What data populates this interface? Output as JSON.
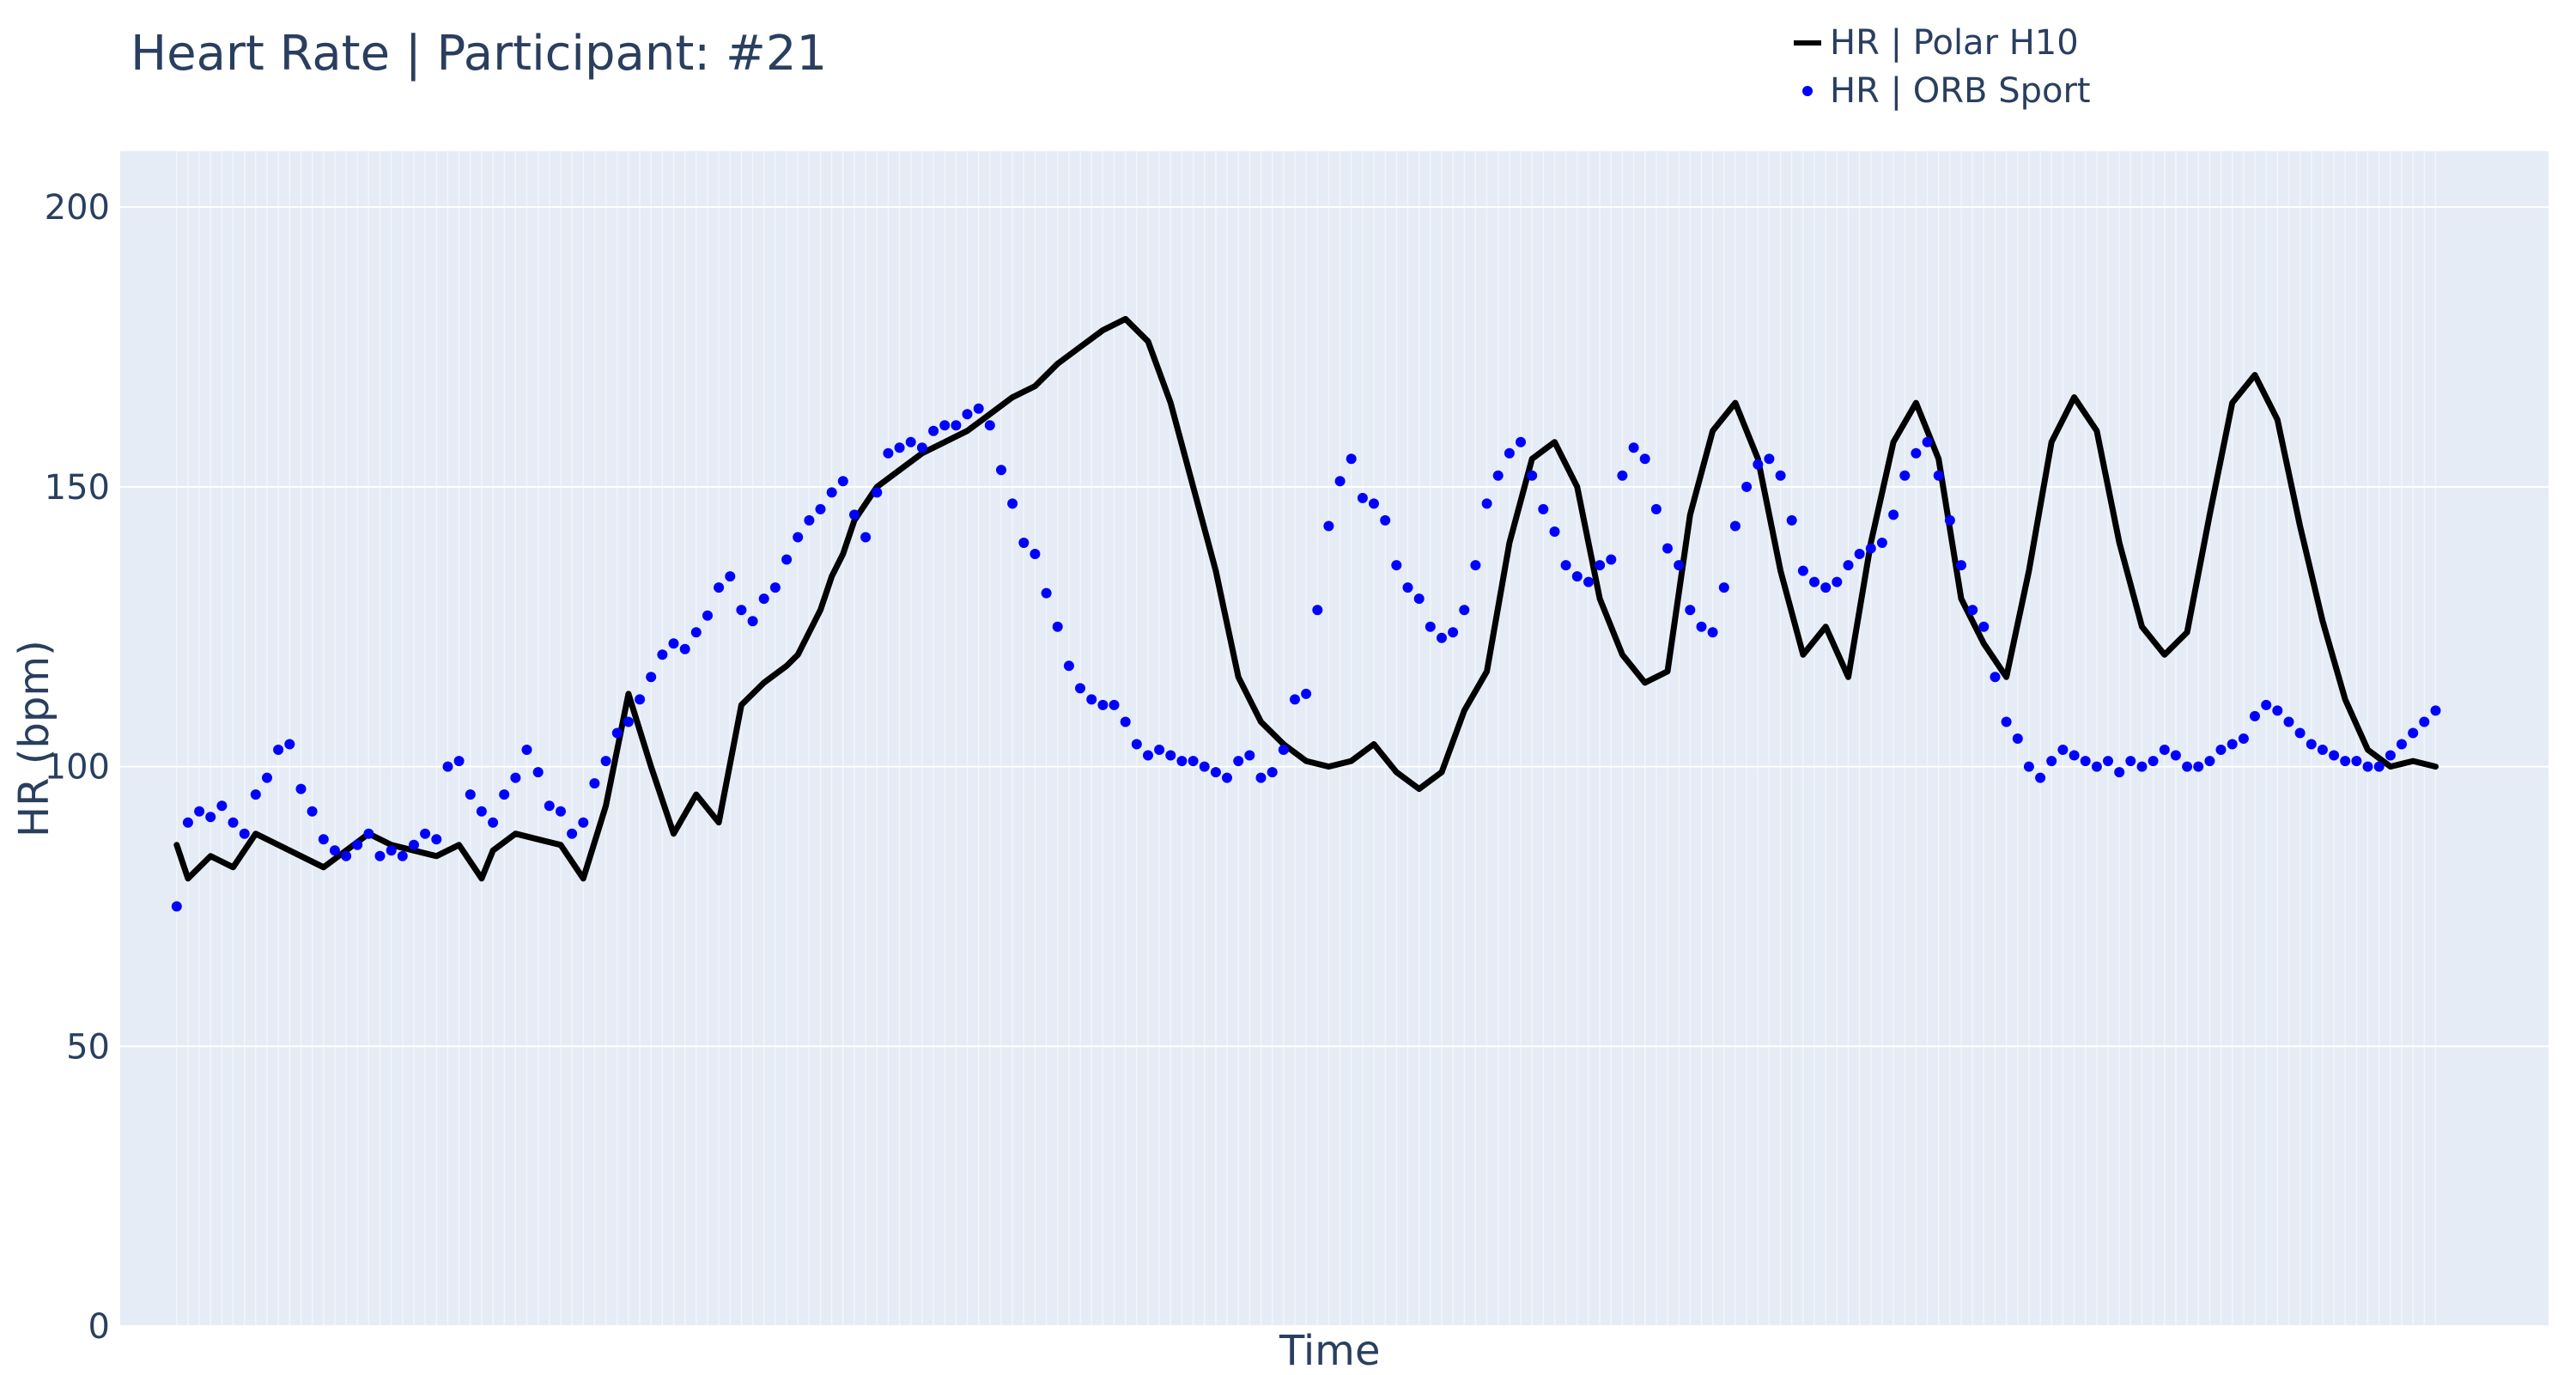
{
  "chart_data": {
    "type": "line",
    "title": "Heart Rate | Participant: #21",
    "xlabel": "Time",
    "ylabel": "HR (bpm)",
    "ylim": [
      0,
      210
    ],
    "yticks": [
      0,
      50,
      100,
      150,
      200
    ],
    "xlim": [
      -5,
      210
    ],
    "grid": true,
    "legend_position": "top-right",
    "series": [
      {
        "name": "HR | Polar H10",
        "style": "line",
        "color": "#000000",
        "x": [
          0,
          1,
          3,
          5,
          7,
          9,
          11,
          13,
          15,
          17,
          19,
          21,
          23,
          25,
          27,
          28,
          30,
          32,
          34,
          36,
          38,
          40,
          42,
          44,
          46,
          48,
          50,
          52,
          54,
          55,
          57,
          58,
          59,
          60,
          62,
          64,
          66,
          68,
          70,
          72,
          74,
          76,
          78,
          80,
          82,
          84,
          86,
          88,
          90,
          92,
          94,
          96,
          98,
          100,
          102,
          104,
          106,
          108,
          110,
          112,
          114,
          116,
          118,
          120,
          122,
          124,
          126,
          128,
          130,
          132,
          134,
          136,
          138,
          140,
          142,
          144,
          146,
          148,
          150,
          152,
          154,
          156,
          158,
          160,
          162,
          164,
          166,
          168,
          170,
          172,
          174,
          176,
          178,
          180,
          182,
          184,
          186,
          188,
          190,
          192,
          194,
          196,
          198,
          200
        ],
        "y": [
          86,
          80,
          84,
          82,
          88,
          86,
          84,
          82,
          85,
          88,
          86,
          85,
          84,
          86,
          80,
          85,
          88,
          87,
          86,
          80,
          93,
          113,
          100,
          88,
          95,
          90,
          111,
          115,
          118,
          120,
          128,
          134,
          138,
          144,
          150,
          153,
          156,
          158,
          160,
          163,
          166,
          168,
          172,
          175,
          178,
          180,
          176,
          165,
          150,
          135,
          116,
          108,
          104,
          101,
          100,
          101,
          104,
          99,
          96,
          99,
          110,
          117,
          140,
          155,
          158,
          150,
          130,
          120,
          115,
          117,
          145,
          160,
          165,
          155,
          135,
          120,
          125,
          116,
          140,
          158,
          165,
          155,
          130,
          122,
          116,
          135,
          158,
          166,
          160,
          140,
          125,
          120,
          124,
          145,
          165,
          170,
          162,
          143,
          126,
          112,
          103,
          100,
          101,
          100
        ]
      },
      {
        "name": "HR | ORB Sport",
        "style": "markers",
        "color": "#0000ff",
        "x": [
          0,
          1,
          2,
          3,
          4,
          5,
          6,
          7,
          8,
          9,
          10,
          11,
          12,
          13,
          14,
          15,
          16,
          17,
          18,
          19,
          20,
          21,
          22,
          23,
          24,
          25,
          26,
          27,
          28,
          29,
          30,
          31,
          32,
          33,
          34,
          35,
          36,
          37,
          38,
          39,
          40,
          41,
          42,
          43,
          44,
          45,
          46,
          47,
          48,
          49,
          50,
          51,
          52,
          53,
          54,
          55,
          56,
          57,
          58,
          59,
          60,
          61,
          62,
          63,
          64,
          65,
          66,
          67,
          68,
          69,
          70,
          71,
          72,
          73,
          74,
          75,
          76,
          77,
          78,
          79,
          80,
          81,
          82,
          83,
          84,
          85,
          86,
          87,
          88,
          89,
          90,
          91,
          92,
          93,
          94,
          95,
          96,
          97,
          98,
          99,
          100,
          101,
          102,
          103,
          104,
          105,
          106,
          107,
          108,
          109,
          110,
          111,
          112,
          113,
          114,
          115,
          116,
          117,
          118,
          119,
          120,
          121,
          122,
          123,
          124,
          125,
          126,
          127,
          128,
          129,
          130,
          131,
          132,
          133,
          134,
          135,
          136,
          137,
          138,
          139,
          140,
          141,
          142,
          143,
          144,
          145,
          146,
          147,
          148,
          149,
          150,
          151,
          152,
          153,
          154,
          155,
          156,
          157,
          158,
          159,
          160,
          161,
          162,
          163,
          164,
          165,
          166,
          167,
          168,
          169,
          170,
          171,
          172,
          173,
          174,
          175,
          176,
          177,
          178,
          179,
          180,
          181,
          182,
          183,
          184,
          185,
          186,
          187,
          188,
          189,
          190,
          191,
          192,
          193,
          194,
          195,
          196,
          197,
          198,
          199,
          200
        ],
        "y": [
          75,
          90,
          92,
          91,
          93,
          90,
          88,
          95,
          98,
          103,
          104,
          96,
          92,
          87,
          85,
          84,
          86,
          88,
          84,
          85,
          84,
          86,
          88,
          87,
          100,
          101,
          95,
          92,
          90,
          95,
          98,
          103,
          99,
          93,
          92,
          88,
          90,
          97,
          101,
          106,
          108,
          112,
          116,
          120,
          122,
          121,
          124,
          127,
          132,
          134,
          128,
          126,
          130,
          132,
          137,
          141,
          144,
          146,
          149,
          151,
          145,
          141,
          149,
          156,
          157,
          158,
          157,
          160,
          161,
          161,
          163,
          164,
          161,
          153,
          147,
          140,
          138,
          131,
          125,
          118,
          114,
          112,
          111,
          111,
          108,
          104,
          102,
          103,
          102,
          101,
          101,
          100,
          99,
          98,
          101,
          102,
          98,
          99,
          103,
          112,
          113,
          128,
          143,
          151,
          155,
          148,
          147,
          144,
          136,
          132,
          130,
          125,
          123,
          124,
          128,
          136,
          147,
          152,
          156,
          158,
          152,
          146,
          142,
          136,
          134,
          133,
          136,
          137,
          152,
          157,
          155,
          146,
          139,
          136,
          128,
          125,
          124,
          132,
          143,
          150,
          154,
          155,
          152,
          144,
          135,
          133,
          132,
          133,
          136,
          138,
          139,
          140,
          145,
          152,
          156,
          158,
          152,
          144,
          136,
          128,
          125,
          116,
          108,
          105,
          100,
          98,
          101,
          103,
          102,
          101,
          100,
          101,
          99,
          101,
          100,
          101,
          103,
          102,
          100,
          100,
          101,
          103,
          104,
          105,
          109,
          111,
          110,
          108,
          106,
          104,
          103,
          102,
          101,
          101,
          100,
          100,
          102,
          104,
          106,
          108,
          110
        ]
      }
    ]
  }
}
